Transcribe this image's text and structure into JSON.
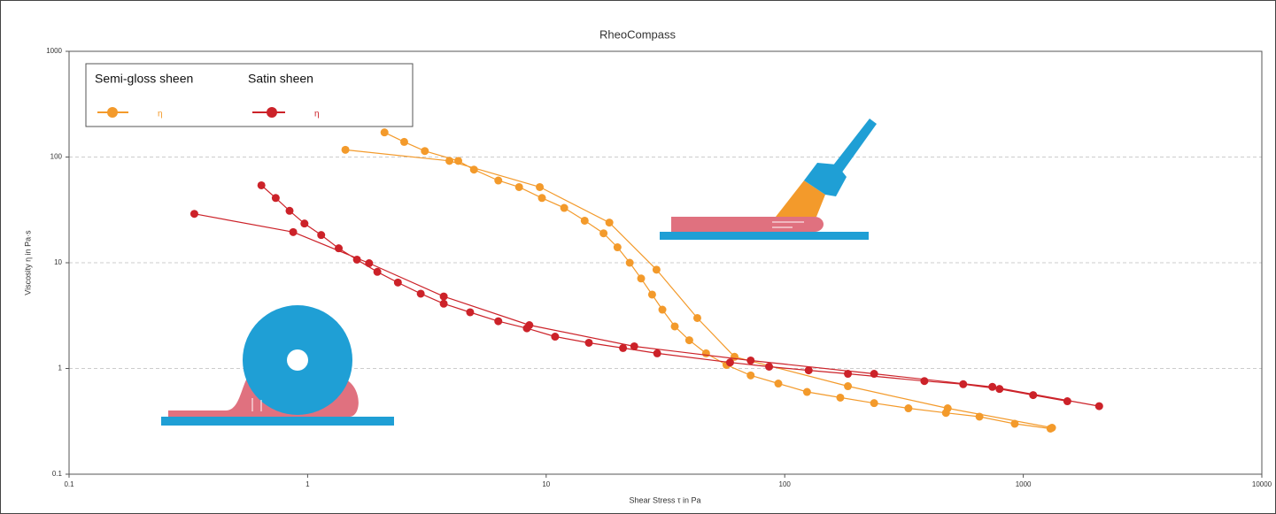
{
  "chart_data": {
    "type": "line",
    "title": "RheoCompass",
    "x_label": "Shear Stress τ in Pa",
    "y_label": "Viscosity η in Pa·s",
    "xscale": "log",
    "yscale": "log",
    "xlim": [
      0.1,
      10000
    ],
    "ylim": [
      0.1,
      1000
    ],
    "xticks": [
      0.1,
      1,
      10,
      100,
      1000,
      10000
    ],
    "yticks": [
      0.1,
      1,
      10,
      100,
      1000
    ],
    "grid": true,
    "legend": "upper left",
    "series": [
      {
        "name": "Semi-gloss sheen",
        "label": "η",
        "color": "#f39a2b",
        "x": [
          1.44,
          3.93,
          9.4,
          18.4,
          29,
          43,
          61.6,
          184,
          482,
          1320,
          null,
          2.1,
          2.54,
          3.1,
          4.28,
          4.98,
          6.3,
          7.7,
          9.6,
          11.9,
          14.5,
          17.4,
          19.9,
          22.4,
          25,
          27.8,
          30.7,
          34.6,
          39.8,
          46.8,
          57,
          72,
          94,
          124,
          171,
          237,
          330,
          474,
          655,
          921,
          1300
        ],
        "values": [
          117,
          92,
          52,
          24,
          8.6,
          3,
          1.29,
          0.68,
          0.42,
          0.275,
          null,
          171,
          139,
          114,
          92,
          76,
          60,
          52,
          41,
          33,
          25,
          19,
          14,
          10,
          7.1,
          5,
          3.6,
          2.5,
          1.85,
          1.39,
          1.08,
          0.86,
          0.72,
          0.6,
          0.53,
          0.47,
          0.42,
          0.38,
          0.35,
          0.3,
          0.27
        ]
      },
      {
        "name": "Satin sheen",
        "label": "η",
        "color": "#cc2229",
        "x": [
          0.335,
          0.87,
          1.81,
          3.72,
          8.5,
          23.4,
          72,
          237,
          742,
          2080,
          null,
          0.64,
          0.735,
          0.84,
          0.97,
          1.14,
          1.35,
          1.61,
          1.96,
          2.39,
          2.98,
          3.72,
          4.8,
          6.3,
          8.3,
          10.9,
          15.1,
          21,
          29.2,
          59,
          86,
          126,
          184,
          385,
          560,
          795,
          1100,
          1530
        ],
        "values": [
          29,
          19.5,
          9.9,
          4.8,
          2.57,
          1.62,
          1.19,
          0.89,
          0.67,
          0.44,
          null,
          54,
          41,
          31,
          23.5,
          18.3,
          13.7,
          10.7,
          8.2,
          6.5,
          5.1,
          4.1,
          3.4,
          2.8,
          2.4,
          2.0,
          1.75,
          1.56,
          1.39,
          1.14,
          1.04,
          0.96,
          0.89,
          0.76,
          0.71,
          0.64,
          0.56,
          0.49
        ]
      }
    ]
  }
}
